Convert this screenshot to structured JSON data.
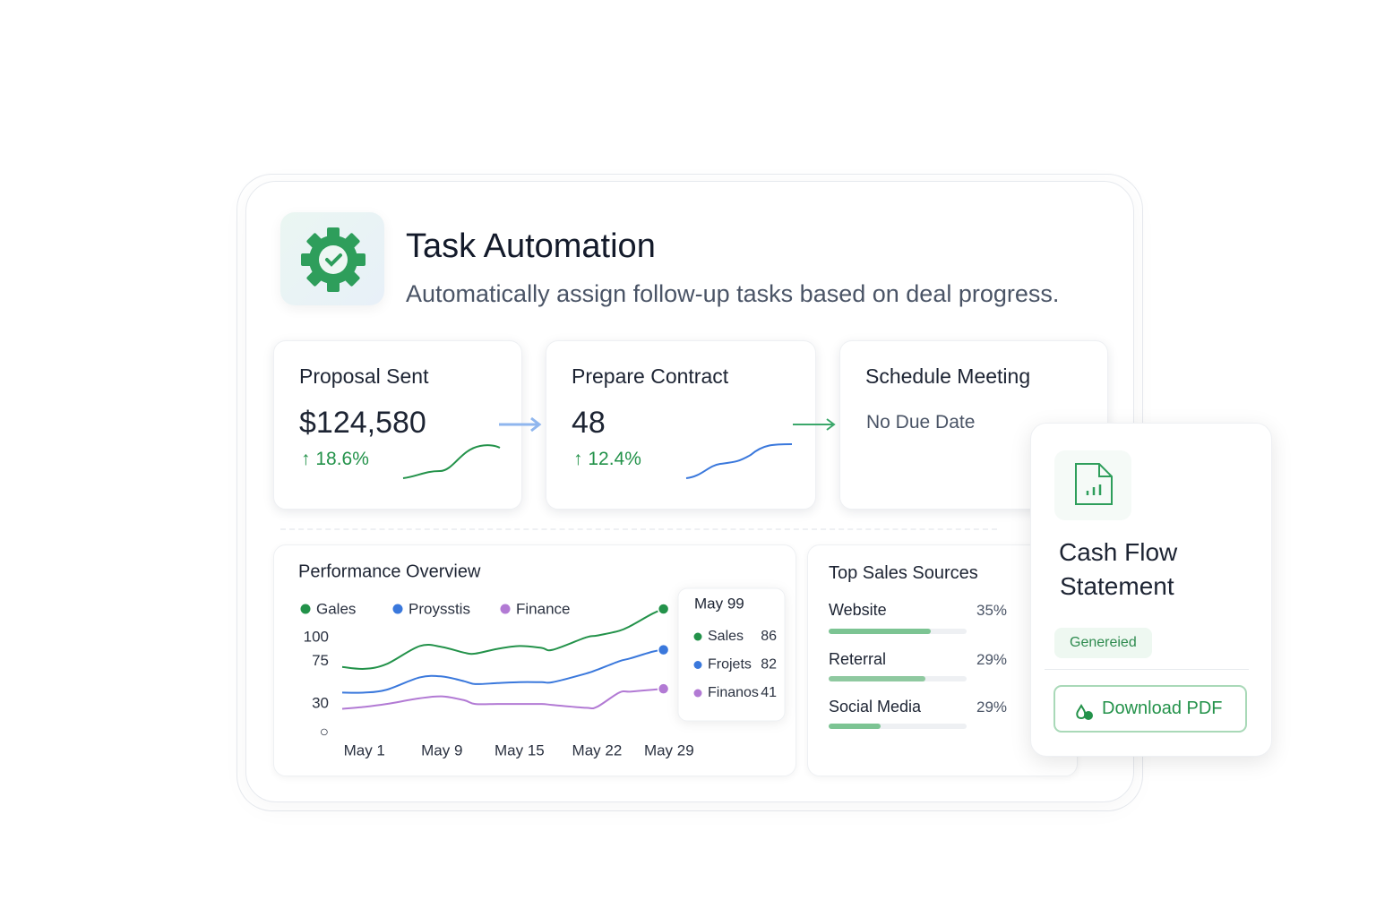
{
  "header": {
    "title": "Task Automation",
    "subtitle": "Automatically assign follow-up tasks based on deal progress."
  },
  "cards": [
    {
      "title": "Proposal Sent",
      "value": "$124,580",
      "change": "18.6%"
    },
    {
      "title": "Prepare Contract",
      "value": "48",
      "change": "12.4%"
    },
    {
      "title": "Schedule Meeting",
      "value": "No Due Date"
    }
  ],
  "chart_data": {
    "type": "line",
    "title": "Performance Overview",
    "x": [
      -1,
      1,
      3,
      6,
      8,
      10,
      11,
      13,
      15,
      17,
      18,
      21,
      22,
      24,
      25,
      27,
      28
    ],
    "xlim": [
      -1,
      29
    ],
    "xticks": [
      {
        "value": 1,
        "label": "May 1"
      },
      {
        "value": 8,
        "label": "May 9"
      },
      {
        "value": 15,
        "label": "May 15"
      },
      {
        "value": 22,
        "label": "May 22"
      },
      {
        "value": 28.5,
        "label": "May 29"
      }
    ],
    "ylim": [
      0,
      130
    ],
    "yticks": [
      100,
      75,
      30,
      {
        "value": 0,
        "label": "○"
      }
    ],
    "series": [
      {
        "name": "Gales",
        "color": "#23924a",
        "values": [
          69,
          67,
          72,
          91,
          90,
          84,
          83,
          88,
          91,
          89,
          87,
          100,
          102,
          107,
          112,
          125,
          130
        ]
      },
      {
        "name": "Proysstis",
        "color": "#3a78dc",
        "values": [
          42,
          42,
          45,
          58,
          59,
          54,
          51,
          52,
          53,
          53,
          53,
          62,
          66,
          75,
          78,
          85,
          87
        ]
      },
      {
        "name": "Finance",
        "color": "#b27ad4",
        "values": [
          25,
          27,
          30,
          36,
          38,
          34,
          30,
          30,
          30,
          30,
          29,
          26,
          27,
          42,
          43,
          45,
          46
        ]
      }
    ],
    "tooltip": {
      "title": "May 99",
      "items": [
        {
          "label": "Sales",
          "value": "86"
        },
        {
          "label": "Frojets",
          "value": "82"
        },
        {
          "label": "Finanos",
          "value": "41"
        }
      ]
    }
  },
  "sources": {
    "title": "Top Sales Sources",
    "items": [
      {
        "label": "Website",
        "value": "35%"
      },
      {
        "label": "Reterral",
        "value": "29%"
      },
      {
        "label": "Social Media",
        "value": "29%"
      }
    ]
  },
  "cash_flow": {
    "title_line1": "Cash Flow",
    "title_line2": "Statement",
    "status": "Genereied",
    "button": "Download PDF"
  }
}
